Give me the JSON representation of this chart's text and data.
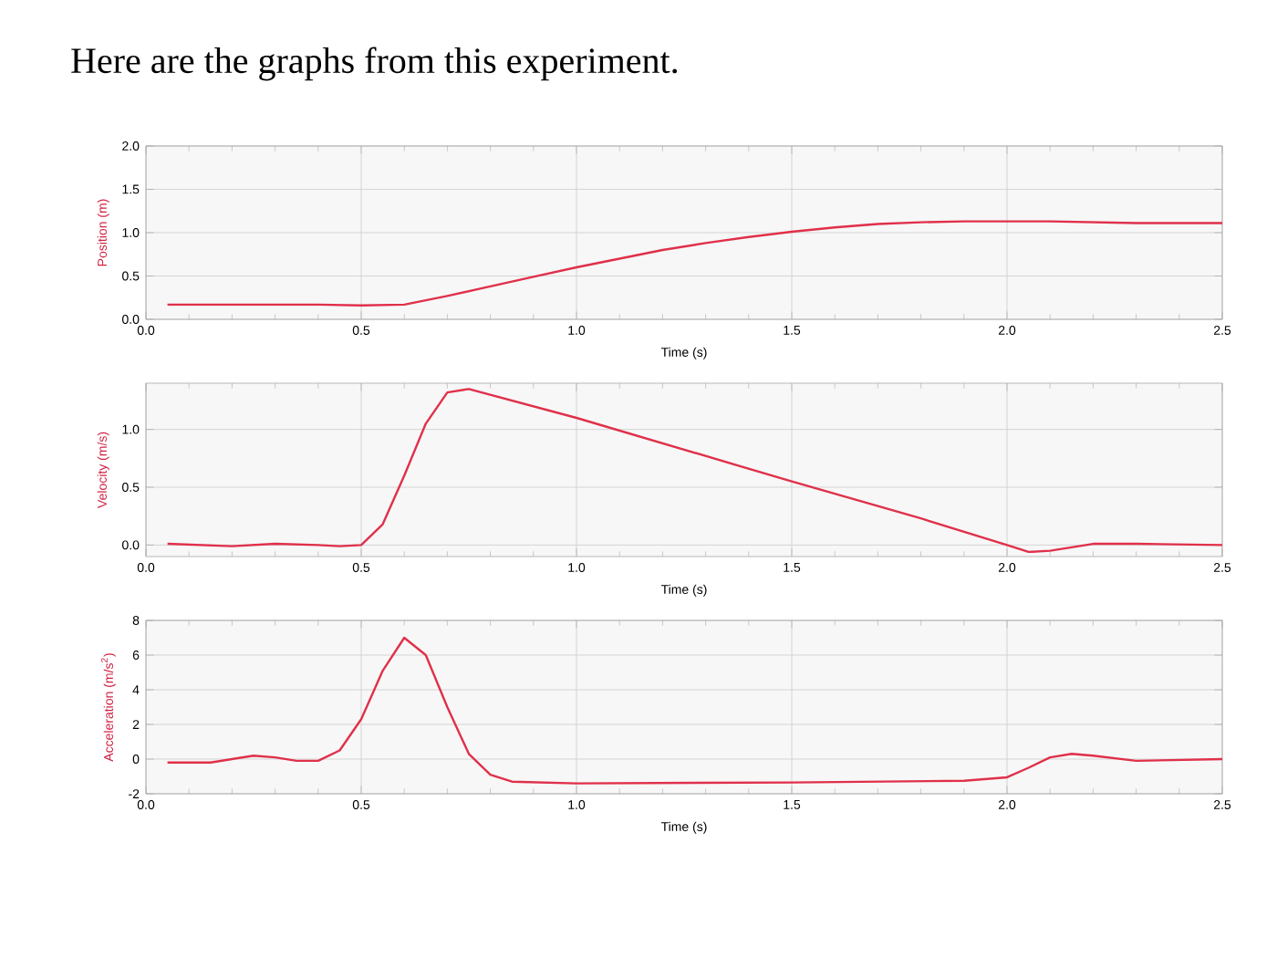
{
  "chart_data": [
    {
      "type": "line",
      "title": "Here are the graphs from this experiment.",
      "xlabel": "Time (s)",
      "ylabel": "Position (m)",
      "xlim": [
        0,
        2.5
      ],
      "ylim": [
        0,
        2.0
      ],
      "grid": true,
      "xticks": [
        {
          "value": 0,
          "label": "0.0"
        },
        {
          "value": 0.5,
          "label": "0.5"
        },
        {
          "value": 1.0,
          "label": "1.0"
        },
        {
          "value": 1.5,
          "label": "1.5"
        },
        {
          "value": 2.0,
          "label": "2.0"
        },
        {
          "value": 2.5,
          "label": "2.5"
        }
      ],
      "yticks": [
        {
          "value": 0,
          "label": "0.0"
        },
        {
          "value": 0.5,
          "label": "0.5"
        },
        {
          "value": 1.0,
          "label": "1.0"
        },
        {
          "value": 1.5,
          "label": "1.5"
        },
        {
          "value": 2.0,
          "label": "2.0"
        }
      ],
      "series": [
        {
          "color": "#e0304a",
          "x": [
            0.05,
            0.4,
            0.5,
            0.6,
            0.7,
            0.8,
            0.9,
            1.0,
            1.1,
            1.2,
            1.3,
            1.4,
            1.5,
            1.6,
            1.7,
            1.8,
            1.9,
            2.0,
            2.1,
            2.2,
            2.3,
            2.4,
            2.5
          ],
          "values": [
            0.17,
            0.17,
            0.16,
            0.17,
            0.27,
            0.38,
            0.49,
            0.6,
            0.7,
            0.8,
            0.88,
            0.95,
            1.01,
            1.06,
            1.1,
            1.12,
            1.13,
            1.13,
            1.13,
            1.12,
            1.11,
            1.11,
            1.11
          ]
        }
      ]
    },
    {
      "type": "line",
      "xlabel": "Time (s)",
      "ylabel": "Velocity (m/s)",
      "xlim": [
        0,
        2.5
      ],
      "ylim": [
        -0.1,
        1.4
      ],
      "grid": true,
      "xticks": [
        {
          "value": 0,
          "label": "0.0"
        },
        {
          "value": 0.5,
          "label": "0.5"
        },
        {
          "value": 1.0,
          "label": "1.0"
        },
        {
          "value": 1.5,
          "label": "1.5"
        },
        {
          "value": 2.0,
          "label": "2.0"
        },
        {
          "value": 2.5,
          "label": "2.5"
        }
      ],
      "yticks": [
        {
          "value": 0,
          "label": "0.0"
        },
        {
          "value": 0.5,
          "label": "0.5"
        },
        {
          "value": 1.0,
          "label": "1.0"
        }
      ],
      "series": [
        {
          "color": "#e0304a",
          "x": [
            0.05,
            0.2,
            0.3,
            0.4,
            0.45,
            0.5,
            0.55,
            0.6,
            0.65,
            0.7,
            0.75,
            1.0,
            1.5,
            1.8,
            2.0,
            2.05,
            2.1,
            2.2,
            2.3,
            2.5
          ],
          "values": [
            0.01,
            -0.01,
            0.01,
            0.0,
            -0.01,
            0.0,
            0.18,
            0.6,
            1.05,
            1.32,
            1.35,
            1.1,
            0.55,
            0.23,
            0.0,
            -0.06,
            -0.05,
            0.01,
            0.01,
            0.0
          ]
        }
      ]
    },
    {
      "type": "line",
      "xlabel": "Time (s)",
      "ylabel": "Acceleration (m/s$^{2}$)",
      "xlim": [
        0,
        2.5
      ],
      "ylim": [
        -2,
        8
      ],
      "grid": true,
      "xticks": [
        {
          "value": 0,
          "label": "0.0"
        },
        {
          "value": 0.5,
          "label": "0.5"
        },
        {
          "value": 1.0,
          "label": "1.0"
        },
        {
          "value": 1.5,
          "label": "1.5"
        },
        {
          "value": 2.0,
          "label": "2.0"
        },
        {
          "value": 2.5,
          "label": "2.5"
        }
      ],
      "yticks": [
        -2,
        0,
        2,
        4,
        6,
        8
      ],
      "series": [
        {
          "color": "#e0304a",
          "x": [
            0.05,
            0.15,
            0.25,
            0.3,
            0.35,
            0.4,
            0.45,
            0.5,
            0.55,
            0.6,
            0.65,
            0.7,
            0.75,
            0.8,
            0.85,
            1.0,
            1.5,
            1.9,
            2.0,
            2.05,
            2.1,
            2.15,
            2.2,
            2.3,
            2.5
          ],
          "values": [
            -0.2,
            -0.2,
            0.2,
            0.1,
            -0.1,
            -0.1,
            0.5,
            2.3,
            5.1,
            7.0,
            6.0,
            3.0,
            0.3,
            -0.9,
            -1.3,
            -1.4,
            -1.35,
            -1.25,
            -1.05,
            -0.5,
            0.1,
            0.3,
            0.2,
            -0.1,
            0.0
          ]
        }
      ]
    }
  ]
}
